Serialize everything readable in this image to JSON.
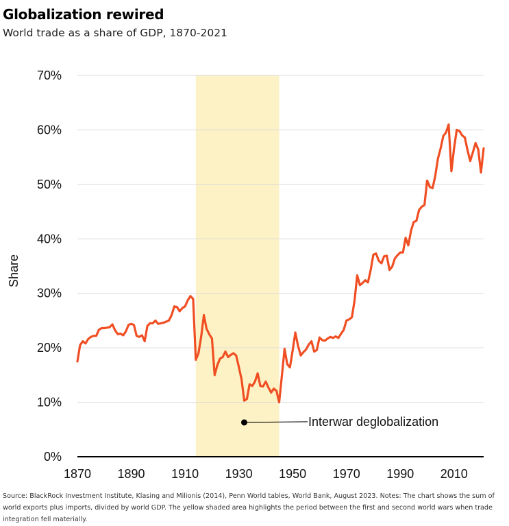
{
  "header": {
    "title": "Globalization rewired",
    "subtitle": "World trade as a share of GDP, 1870-2021"
  },
  "source_note": "Source: BlackRock Investment Institute, Klasing and Milionis (2014), Penn World tables, World Bank, August 2023. Notes: The chart shows the sum of world exports plus imports, divided by world GDP. The yellow shaded area highlights the period between the first and second world wars when trade integration fell materially.",
  "colors": {
    "line": "#f04e23",
    "shade": "#fdf2c5",
    "grid": "#d9d9d9",
    "axis": "#000000"
  },
  "chart_data": {
    "type": "line",
    "ylabel": "Share",
    "xlim": [
      1870,
      2021
    ],
    "ylim": [
      0,
      70
    ],
    "x_ticks": [
      1870,
      1890,
      1910,
      1930,
      1950,
      1970,
      1990,
      2010
    ],
    "x_tick_labels": [
      "1870",
      "1890",
      "1910",
      "1930",
      "1950",
      "1970",
      "1990",
      "2010"
    ],
    "y_ticks": [
      0,
      10,
      20,
      30,
      40,
      50,
      60,
      70
    ],
    "y_tick_labels": [
      "0%",
      "10%",
      "20%",
      "30%",
      "40%",
      "50%",
      "60%",
      "70%"
    ],
    "grid": "horizontal",
    "shaded_region": {
      "x": [
        1914,
        1945
      ],
      "label": "Interwar deglobalization",
      "label_point": {
        "x": 1932,
        "y": 6.3
      }
    },
    "x": [
      1870,
      1871,
      1872,
      1873,
      1874,
      1875,
      1876,
      1877,
      1878,
      1879,
      1880,
      1881,
      1882,
      1883,
      1884,
      1885,
      1886,
      1887,
      1888,
      1889,
      1890,
      1891,
      1892,
      1893,
      1894,
      1895,
      1896,
      1897,
      1898,
      1899,
      1900,
      1901,
      1902,
      1903,
      1904,
      1905,
      1906,
      1907,
      1908,
      1909,
      1910,
      1911,
      1912,
      1913,
      1914,
      1915,
      1916,
      1917,
      1918,
      1919,
      1920,
      1921,
      1922,
      1923,
      1924,
      1925,
      1926,
      1927,
      1928,
      1929,
      1930,
      1931,
      1932,
      1933,
      1934,
      1935,
      1936,
      1937,
      1938,
      1939,
      1940,
      1941,
      1942,
      1943,
      1944,
      1945,
      1946,
      1947,
      1948,
      1949,
      1950,
      1951,
      1952,
      1953,
      1954,
      1955,
      1956,
      1957,
      1958,
      1959,
      1960,
      1961,
      1962,
      1963,
      1964,
      1965,
      1966,
      1967,
      1968,
      1969,
      1970,
      1971,
      1972,
      1973,
      1974,
      1975,
      1976,
      1977,
      1978,
      1979,
      1980,
      1981,
      1982,
      1983,
      1984,
      1985,
      1986,
      1987,
      1988,
      1989,
      1990,
      1991,
      1992,
      1993,
      1994,
      1995,
      1996,
      1997,
      1998,
      1999,
      2000,
      2001,
      2002,
      2003,
      2004,
      2005,
      2006,
      2007,
      2008,
      2009,
      2010,
      2011,
      2012,
      2013,
      2014,
      2015,
      2016,
      2017,
      2018,
      2019,
      2020,
      2021
    ],
    "values": [
      17.5,
      20.5,
      21.2,
      20.8,
      21.6,
      22.0,
      22.2,
      22.2,
      23.3,
      23.6,
      23.6,
      23.7,
      23.8,
      24.3,
      23.2,
      22.5,
      22.6,
      22.3,
      23.0,
      24.2,
      24.4,
      24.2,
      22.2,
      22.0,
      22.3,
      21.2,
      24.0,
      24.5,
      24.5,
      25.0,
      24.4,
      24.5,
      24.6,
      24.8,
      25.0,
      26.0,
      27.6,
      27.5,
      26.7,
      27.3,
      27.6,
      28.7,
      29.5,
      29.0,
      17.8,
      19.0,
      22.0,
      26.0,
      23.5,
      22.5,
      21.7,
      15.0,
      16.8,
      18.0,
      18.3,
      19.3,
      18.3,
      18.7,
      19.0,
      18.6,
      16.5,
      14.2,
      10.3,
      10.6,
      13.3,
      13.0,
      13.8,
      15.3,
      13.0,
      12.9,
      13.8,
      12.7,
      11.8,
      12.5,
      12.1,
      10.0,
      14.9,
      19.8,
      17.0,
      16.4,
      19.5,
      22.8,
      20.4,
      18.6,
      19.2,
      19.7,
      20.6,
      21.2,
      19.3,
      19.6,
      21.9,
      21.4,
      21.3,
      21.7,
      22.0,
      21.8,
      22.1,
      21.8,
      22.6,
      23.3,
      25.0,
      25.2,
      25.6,
      28.6,
      33.3,
      31.5,
      31.9,
      32.4,
      32.0,
      34.3,
      37.1,
      37.3,
      36.0,
      35.5,
      36.8,
      36.9,
      34.3,
      34.9,
      36.4,
      37.0,
      37.5,
      37.5,
      40.2,
      38.8,
      41.5,
      43.1,
      43.3,
      45.3,
      45.9,
      46.2,
      50.7,
      49.5,
      49.3,
      51.5,
      54.7,
      56.6,
      58.9,
      59.5,
      61.0,
      52.4,
      56.6,
      60.0,
      59.8,
      59.0,
      58.6,
      56.3,
      54.3,
      55.9,
      57.6,
      56.4,
      52.2,
      56.6
    ]
  }
}
